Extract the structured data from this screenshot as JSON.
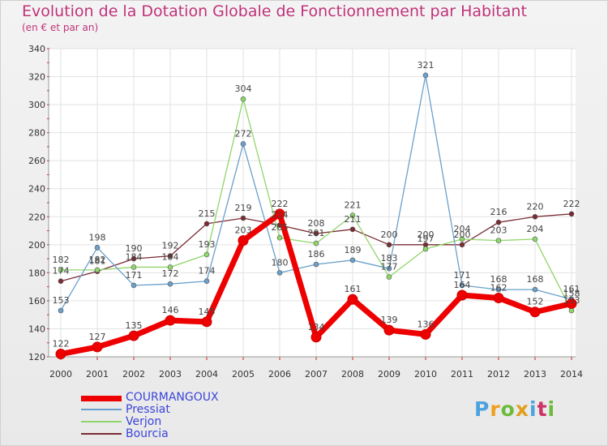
{
  "title": "Evolution de la Dotation Globale de Fonctionnement par Habitant",
  "subtitle": "(en € et par an)",
  "logo": {
    "text": "Proxiti",
    "colors": [
      "#4aa3df",
      "#f0a020",
      "#6dbb3c",
      "#e0a020",
      "#4aa3df",
      "#cc3366",
      "#6dbb3c"
    ]
  },
  "chart_data": {
    "type": "line",
    "x": [
      2000,
      2001,
      2002,
      2003,
      2004,
      2005,
      2006,
      2007,
      2008,
      2009,
      2010,
      2011,
      2012,
      2013,
      2014
    ],
    "y_ticks": [
      120,
      140,
      160,
      180,
      200,
      220,
      240,
      260,
      280,
      300,
      320,
      340
    ],
    "ylim": [
      120,
      340
    ],
    "grid": true,
    "legend_position": "bottom-left",
    "series": [
      {
        "name": "COURMANGOUX",
        "color": "#ee0000",
        "values": [
          122,
          127,
          135,
          146,
          145,
          203,
          222,
          134,
          161,
          139,
          136,
          164,
          162,
          152,
          158
        ],
        "labels": [
          "122",
          "127",
          "135",
          "146",
          "145",
          "203",
          "222",
          "134",
          "161",
          "139",
          "136",
          "164",
          "162",
          "152",
          "158"
        ]
      },
      {
        "name": "Pressiat",
        "color": "#6aa0cc",
        "values": [
          153,
          198,
          171,
          172,
          174,
          272,
          180,
          186,
          189,
          183,
          321,
          171,
          168,
          168,
          161
        ],
        "labels": [
          "153",
          "198",
          "171",
          "172",
          "174",
          "272",
          "180",
          "186",
          "189",
          "183",
          "321",
          "171",
          "168",
          "168",
          "161"
        ]
      },
      {
        "name": "Verjon",
        "color": "#8fd66a",
        "values": [
          182,
          182,
          184,
          184,
          193,
          304,
          205,
          201,
          221,
          177,
          197,
          204,
          203,
          204,
          153
        ],
        "labels": [
          "182",
          "182",
          "184",
          "184",
          "193",
          "304",
          "205",
          "201",
          "221",
          "177",
          "197",
          "204",
          "203",
          "204",
          "153"
        ]
      },
      {
        "name": "Bourcia",
        "color": "#7a2c33",
        "values": [
          174,
          181,
          190,
          192,
          215,
          219,
          214,
          208,
          211,
          200,
          200,
          200,
          216,
          220,
          222
        ],
        "labels": [
          "174",
          "181",
          "190",
          "192",
          "215",
          "219",
          "214",
          "208",
          "211",
          "200",
          "200",
          "200",
          "216",
          "220",
          "222"
        ]
      }
    ]
  }
}
